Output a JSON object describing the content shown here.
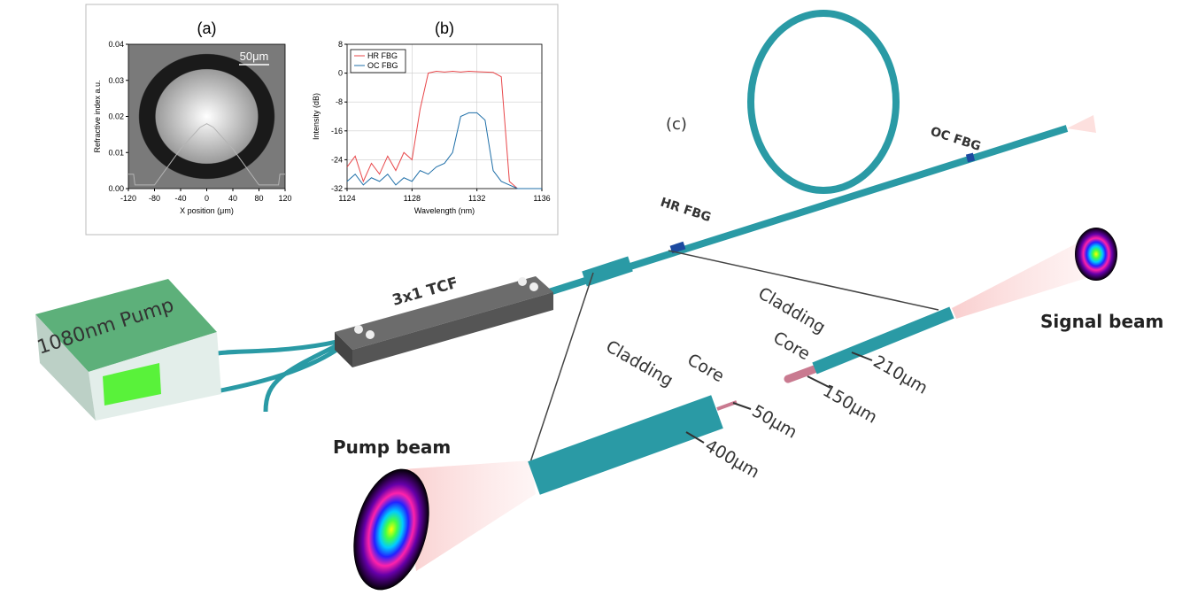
{
  "chart_data": [
    {
      "type": "line",
      "title": "(a)",
      "xlabel": "X position (μm)",
      "ylabel": "Refractive index a.u.",
      "annotation": "50μm",
      "x": [
        -120,
        -112,
        -110,
        -80,
        -60,
        -40,
        -20,
        -10,
        0,
        10,
        20,
        40,
        60,
        80,
        110,
        112,
        120
      ],
      "values": [
        0.004,
        0.004,
        0.001,
        0.001,
        0.006,
        0.011,
        0.015,
        0.017,
        0.018,
        0.017,
        0.015,
        0.011,
        0.006,
        0.001,
        0.001,
        0.004,
        0.004
      ],
      "color": "#b4b4b4",
      "xlim": [
        -120,
        120
      ],
      "xticks": [
        -120,
        -80,
        -40,
        0,
        40,
        80,
        120
      ],
      "ylim": [
        0,
        0.04
      ],
      "yticks": [
        {
          "value": 0,
          "label": "0.00"
        },
        0.01,
        0.02,
        0.03,
        0.04
      ],
      "grid": false
    },
    {
      "type": "line",
      "title": "(b)",
      "xlabel": "Wavelength (nm)",
      "ylabel": "Intensity (dB)",
      "x": [
        1124,
        1124.5,
        1125,
        1125.5,
        1126,
        1126.5,
        1127,
        1127.5,
        1128,
        1128.5,
        1129,
        1129.5,
        1130,
        1130.5,
        1131,
        1131.5,
        1132,
        1132.5,
        1133,
        1133.5,
        1134,
        1134.5,
        1135,
        1135.5,
        1136
      ],
      "series": [
        {
          "name": "HR FBG",
          "color": "#e8474a",
          "values": [
            -26,
            -23,
            -30,
            -25,
            -28,
            -23,
            -27,
            -22,
            -24,
            -10,
            0,
            0.5,
            0.3,
            0.5,
            0.3,
            0.5,
            0.4,
            0.3,
            0.2,
            -1,
            -30,
            -32,
            -32,
            -32,
            -32
          ]
        },
        {
          "name": "OC FBG",
          "color": "#1f6fa8",
          "values": [
            -30,
            -28,
            -31,
            -29,
            -30,
            -28,
            -31,
            -29,
            -30,
            -27,
            -28,
            -26,
            -25,
            -22,
            -12,
            -11,
            -11,
            -13,
            -27,
            -30,
            -31,
            -32,
            -32,
            -32,
            -32
          ]
        }
      ],
      "xlim": [
        1124,
        1136
      ],
      "xticks": [
        1124,
        1128,
        1132,
        1136
      ],
      "ylim": [
        -32,
        8
      ],
      "yticks": [
        -32,
        -24,
        -16,
        -8,
        0,
        8
      ],
      "grid": true,
      "legend": "upper left"
    }
  ],
  "diagram": {
    "label": "(c)",
    "oc_fbg": "OC FBG",
    "hr_fbg": "HR FBG",
    "tcf": "3x1 TCF",
    "pump": "1080nm Pump",
    "signal": {
      "cladding": "Cladding",
      "core": "Core",
      "cladding_size": "210μm",
      "core_size": "150μm",
      "beam": "Signal beam"
    },
    "pump_fiber": {
      "cladding": "Cladding",
      "core": "Core",
      "core_size": "50μm",
      "cladding_size": "400μm",
      "beam": "Pump beam"
    }
  }
}
